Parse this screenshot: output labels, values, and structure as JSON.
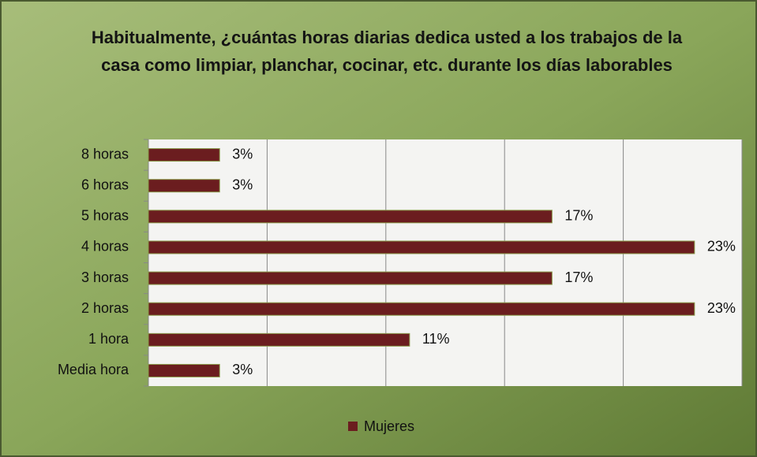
{
  "chart_data": {
    "type": "hbar",
    "title": "Habitualmente, ¿cuántas horas diarias dedica usted a los trabajos de la casa como limpiar, planchar, cocinar, etc. durante los días laborables",
    "categories": [
      "8 horas",
      "6 horas",
      "5 horas",
      "4 horas",
      "3 horas",
      "2 horas",
      "1 hora",
      "Media hora"
    ],
    "series": [
      {
        "name": "Mujeres",
        "color": "#6b1d1f",
        "values": [
          3,
          3,
          17,
          23,
          17,
          23,
          11,
          3
        ],
        "value_labels": [
          "3%",
          "3%",
          "17%",
          "23%",
          "17%",
          "23%",
          "11%",
          "3%"
        ]
      }
    ],
    "xlim": [
      0,
      25
    ],
    "xticks": [
      0,
      5,
      10,
      15,
      20,
      25
    ],
    "grid": true,
    "legend": "bottom"
  }
}
